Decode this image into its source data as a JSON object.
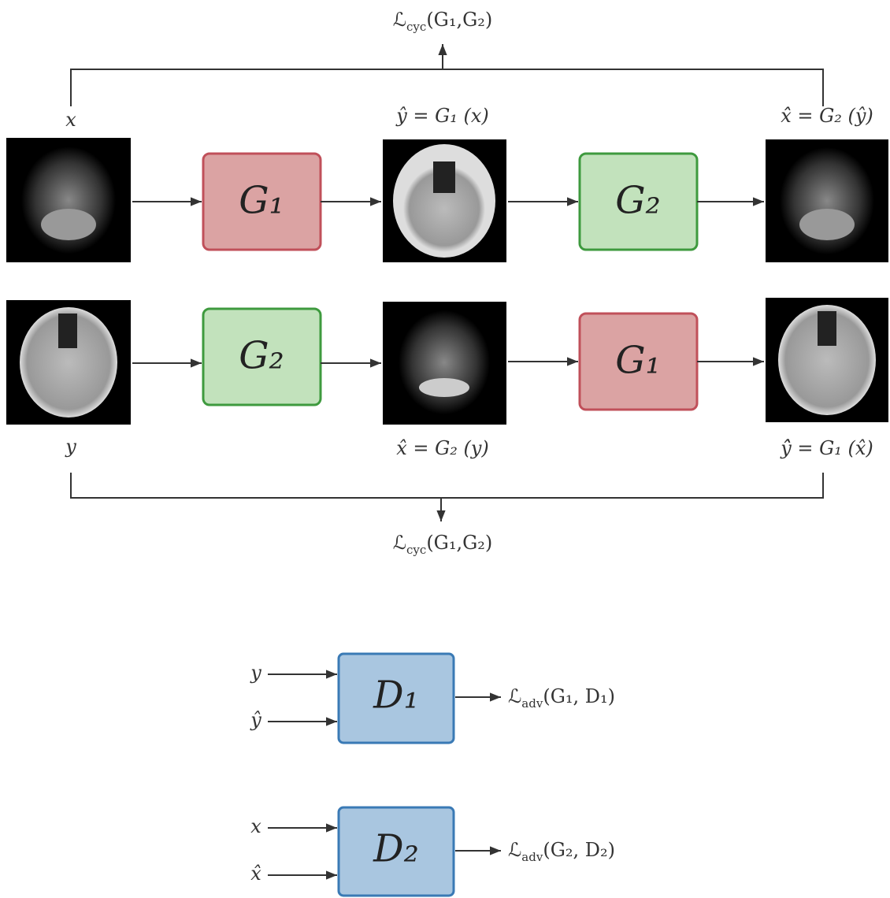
{
  "cycle_losses": [
    {
      "symbol": "ℒ",
      "subscript": "cyc",
      "args": "(G₁,G₂)"
    },
    {
      "symbol": "ℒ",
      "subscript": "cyc",
      "args": "(G₁,G₂)"
    }
  ],
  "rows": [
    {
      "input_label": "x",
      "mid_label": "ŷ = G₁ (x)",
      "output_label": "x̂̂ = G₂ (ŷ)",
      "blocks": [
        "G₁",
        "G₂"
      ]
    },
    {
      "input_label": "y",
      "mid_label": "x̂ = G₂ (y)",
      "output_label": "ŷ̂ = G₁ (x̂)",
      "blocks": [
        "G₂",
        "G₁"
      ]
    }
  ],
  "discriminators": [
    {
      "name": "D₁",
      "inputs": [
        "y",
        "ŷ"
      ],
      "loss": {
        "symbol": "ℒ",
        "subscript": "adv",
        "args": "(G₁, D₁)"
      }
    },
    {
      "name": "D₂",
      "inputs": [
        "x",
        "x̂"
      ],
      "loss": {
        "symbol": "ℒ",
        "subscript": "adv",
        "args": "(G₂, D₂)"
      }
    }
  ]
}
